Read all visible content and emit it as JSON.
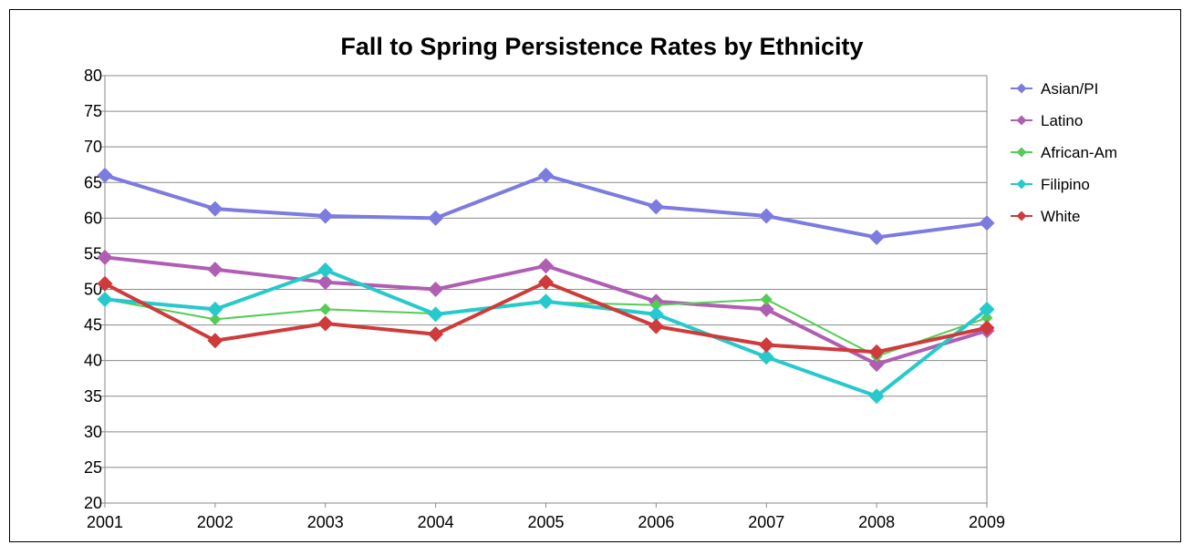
{
  "chart_data": {
    "type": "line",
    "title": "Fall to Spring Persistence Rates by Ethnicity",
    "xlabel": "",
    "ylabel": "",
    "ylim": [
      20,
      80
    ],
    "yticks": [
      "20",
      "25",
      "30",
      "35",
      "40",
      "45",
      "50",
      "55",
      "60",
      "65",
      "70",
      "75",
      "80"
    ],
    "categories": [
      "2001",
      "2002",
      "2003",
      "2004",
      "2005",
      "2006",
      "2007",
      "2008",
      "2009"
    ],
    "grid": true,
    "legend_position": "right",
    "series": [
      {
        "name": "Asian/PI",
        "color": "#7b7be0",
        "values": [
          66.0,
          61.3,
          60.3,
          60.0,
          66.0,
          61.6,
          60.3,
          57.3,
          59.3
        ]
      },
      {
        "name": "Latino",
        "color": "#b05eb3",
        "values": [
          54.5,
          52.8,
          51.0,
          50.0,
          53.3,
          48.3,
          47.2,
          39.5,
          44.2
        ]
      },
      {
        "name": "African-Am",
        "color": "#55cc55",
        "values": [
          48.6,
          45.8,
          47.2,
          46.6,
          48.2,
          47.8,
          48.6,
          40.6,
          46.0
        ]
      },
      {
        "name": "Filipino",
        "color": "#26c9cc",
        "values": [
          48.6,
          47.2,
          52.7,
          46.5,
          48.3,
          46.5,
          40.5,
          35.0,
          47.2
        ]
      },
      {
        "name": "White",
        "color": "#cf3a3a",
        "values": [
          50.8,
          42.8,
          45.2,
          43.7,
          51.0,
          44.8,
          42.2,
          41.2,
          44.6
        ]
      }
    ]
  }
}
